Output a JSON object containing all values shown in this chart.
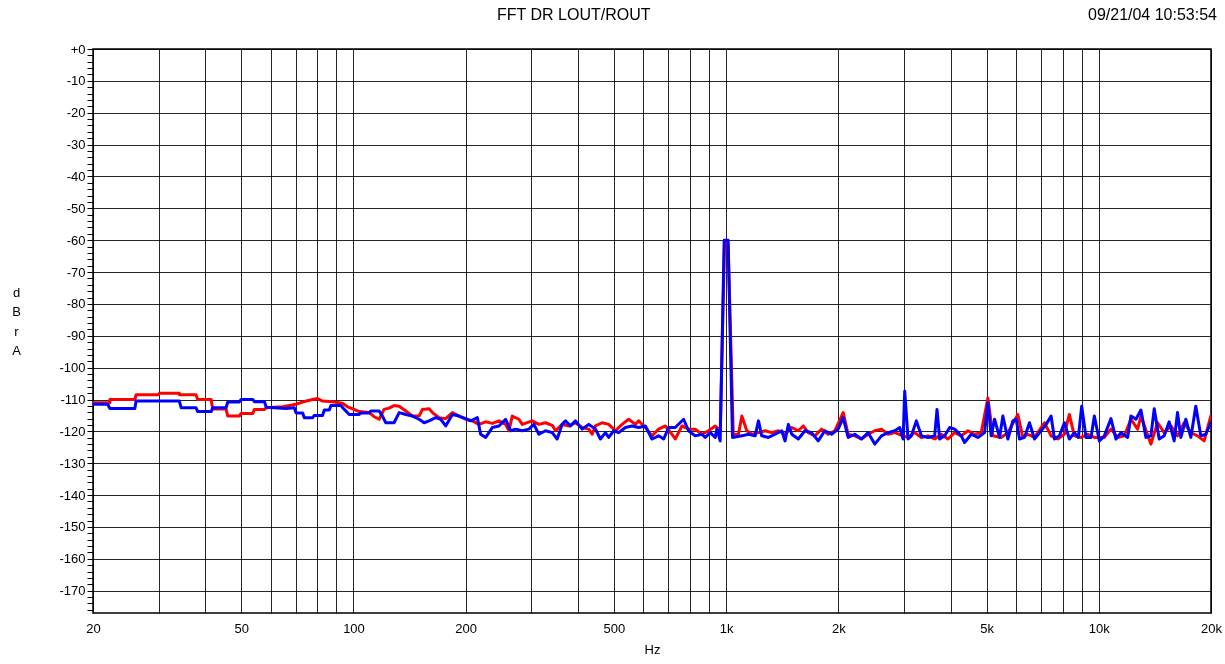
{
  "chart_data": {
    "type": "line",
    "title": "FFT DR LOUT/ROUT",
    "xlabel": "Hz",
    "ylabel": "dBr A",
    "annotations": [
      "09/21/04 10:53:54"
    ],
    "log": "x",
    "grid": true,
    "line_style": "solid",
    "xlim": [
      20,
      20000
    ],
    "xticks": [
      20,
      {
        "value": 30,
        "label": null
      },
      {
        "value": 40,
        "label": null
      },
      50,
      {
        "value": 60,
        "label": null
      },
      {
        "value": 70,
        "label": null
      },
      {
        "value": 80,
        "label": null
      },
      {
        "value": 90,
        "label": null
      },
      100,
      200,
      {
        "value": 300,
        "label": null
      },
      {
        "value": 400,
        "label": null
      },
      500,
      {
        "value": 600,
        "label": null
      },
      {
        "value": 700,
        "label": null
      },
      {
        "value": 800,
        "label": null
      },
      {
        "value": 900,
        "label": null
      },
      {
        "value": 1000,
        "label": "1k"
      },
      {
        "value": 2000,
        "label": "2k"
      },
      {
        "value": 3000,
        "label": null
      },
      {
        "value": 4000,
        "label": null
      },
      {
        "value": 5000,
        "label": "5k"
      },
      {
        "value": 6000,
        "label": null
      },
      {
        "value": 7000,
        "label": null
      },
      {
        "value": 8000,
        "label": null
      },
      {
        "value": 9000,
        "label": null
      },
      {
        "value": 10000,
        "label": "10k"
      },
      {
        "value": 20000,
        "label": "20k"
      }
    ],
    "ylim": [
      -177,
      0
    ],
    "yticks": [
      {
        "value": 0,
        "label": "+0"
      },
      {
        "value": -2,
        "label": null
      },
      {
        "value": -4,
        "label": null
      },
      {
        "value": -6,
        "label": null
      },
      {
        "value": -8,
        "label": null
      },
      -10,
      {
        "value": -12,
        "label": null
      },
      {
        "value": -14,
        "label": null
      },
      {
        "value": -16,
        "label": null
      },
      {
        "value": -18,
        "label": null
      },
      -20,
      {
        "value": -22,
        "label": null
      },
      {
        "value": -24,
        "label": null
      },
      {
        "value": -26,
        "label": null
      },
      {
        "value": -28,
        "label": null
      },
      -30,
      {
        "value": -32,
        "label": null
      },
      {
        "value": -34,
        "label": null
      },
      {
        "value": -36,
        "label": null
      },
      {
        "value": -38,
        "label": null
      },
      -40,
      {
        "value": -42,
        "label": null
      },
      {
        "value": -44,
        "label": null
      },
      {
        "value": -46,
        "label": null
      },
      {
        "value": -48,
        "label": null
      },
      -50,
      {
        "value": -52,
        "label": null
      },
      {
        "value": -54,
        "label": null
      },
      {
        "value": -56,
        "label": null
      },
      {
        "value": -58,
        "label": null
      },
      -60,
      {
        "value": -62,
        "label": null
      },
      {
        "value": -64,
        "label": null
      },
      {
        "value": -66,
        "label": null
      },
      {
        "value": -68,
        "label": null
      },
      -70,
      {
        "value": -72,
        "label": null
      },
      {
        "value": -74,
        "label": null
      },
      {
        "value": -76,
        "label": null
      },
      {
        "value": -78,
        "label": null
      },
      -80,
      {
        "value": -82,
        "label": null
      },
      {
        "value": -84,
        "label": null
      },
      {
        "value": -86,
        "label": null
      },
      {
        "value": -88,
        "label": null
      },
      -90,
      {
        "value": -92,
        "label": null
      },
      {
        "value": -94,
        "label": null
      },
      {
        "value": -96,
        "label": null
      },
      {
        "value": -98,
        "label": null
      },
      -100,
      {
        "value": -102,
        "label": null
      },
      {
        "value": -104,
        "label": null
      },
      {
        "value": -106,
        "label": null
      },
      {
        "value": -108,
        "label": null
      },
      -110,
      {
        "value": -112,
        "label": null
      },
      {
        "value": -114,
        "label": null
      },
      {
        "value": -116,
        "label": null
      },
      {
        "value": -118,
        "label": null
      },
      -120,
      {
        "value": -122,
        "label": null
      },
      {
        "value": -124,
        "label": null
      },
      {
        "value": -126,
        "label": null
      },
      {
        "value": -128,
        "label": null
      },
      -130,
      {
        "value": -132,
        "label": null
      },
      {
        "value": -134,
        "label": null
      },
      {
        "value": -136,
        "label": null
      },
      {
        "value": -138,
        "label": null
      },
      -140,
      {
        "value": -142,
        "label": null
      },
      {
        "value": -144,
        "label": null
      },
      {
        "value": -146,
        "label": null
      },
      {
        "value": -148,
        "label": null
      },
      -150,
      {
        "value": -152,
        "label": null
      },
      {
        "value": -154,
        "label": null
      },
      {
        "value": -156,
        "label": null
      },
      {
        "value": -158,
        "label": null
      },
      -160,
      {
        "value": -162,
        "label": null
      },
      {
        "value": -164,
        "label": null
      },
      {
        "value": -166,
        "label": null
      },
      {
        "value": -168,
        "label": null
      },
      -170,
      {
        "value": -172,
        "label": null
      },
      {
        "value": -174,
        "label": null
      },
      {
        "value": -176,
        "label": null
      }
    ],
    "series": [
      {
        "color": "#ff0000",
        "x": [
          20,
          22.2,
          22.2,
          25.9,
          26.1,
          29.9,
          30.2,
          34.1,
          34.1,
          37.8,
          38.2,
          41.5,
          41.9,
          45.5,
          46,
          49.4,
          49.9,
          53.7,
          54.2,
          57.7,
          58.3,
          64.6,
          70.1,
          73,
          77.7,
          80.1,
          82.6,
          87.8,
          93.4,
          96.4,
          100.4,
          103.6,
          110.2,
          113.6,
          117.2,
          120.8,
          124.6,
          128.5,
          132.6,
          138.2,
          144,
          150,
          153.1,
          159.5,
          162.9,
          169.7,
          176.8,
          184.2,
          192,
          200,
          208.4,
          217.1,
          226.3,
          235.8,
          245.7,
          256,
          261.3,
          266.7,
          277.9,
          283.7,
          301.8,
          314.4,
          327.6,
          341.4,
          348.5,
          363,
          378.3,
          394.1,
          410.7,
          427.9,
          436.9,
          445.9,
          464.6,
          484.1,
          504.4,
          525.6,
          547.7,
          570.6,
          582.5,
          607,
          632.4,
          659,
          686.8,
          715.4,
          730.2,
          761,
          792.8,
          826.2,
          860.7,
          896.9,
          934.7,
          954,
          964,
          990,
          1012,
          1045,
          1079,
          1102,
          1136,
          1172,
          1221,
          1272,
          1325,
          1381,
          1439,
          1500,
          1562,
          1610,
          1661,
          1730,
          1803,
          1879,
          1958,
          2061,
          2125,
          2214,
          2307,
          2404,
          2505,
          2611,
          2720,
          2834,
          2984,
          3077,
          3206,
          3341,
          3481,
          3627,
          3779,
          3938,
          4102,
          4275,
          4455,
          4641,
          4836,
          5039,
          5197,
          5471,
          5701,
          6064,
          6252,
          6448,
          6720,
          7148,
          7447,
          7760,
          8084,
          8337,
          8599,
          8961,
          9335,
          9728,
          10348,
          10781,
          11235,
          11705,
          12198,
          12709,
          12972,
          13795,
          14376,
          14977,
          15607,
          16260,
          16945,
          17658,
          18398,
          19172,
          19975
        ],
        "values": [
          -111,
          -111,
          -110,
          -110,
          -108.5,
          -108.5,
          -108,
          -108,
          -108.5,
          -108.5,
          -110,
          -110,
          -113,
          -113,
          -115.2,
          -115.2,
          -114.4,
          -114.4,
          -113.1,
          -113.1,
          -112.6,
          -112.3,
          -111.5,
          -110.8,
          -110,
          -109.7,
          -110.5,
          -110.7,
          -111.2,
          -112.3,
          -113.1,
          -113.8,
          -114.1,
          -115.4,
          -116.2,
          -113.1,
          -112.7,
          -111.9,
          -112.1,
          -113.6,
          -115.2,
          -115.2,
          -113.1,
          -112.9,
          -114.1,
          -115.7,
          -116,
          -114.1,
          -115.2,
          -116.2,
          -116.7,
          -117.8,
          -117,
          -117.5,
          -116.7,
          -117.8,
          -119.8,
          -115.2,
          -116.2,
          -117.8,
          -116.7,
          -117.8,
          -117.3,
          -118.1,
          -119.8,
          -117.8,
          -118.3,
          -117.3,
          -118.8,
          -119.3,
          -120.9,
          -118.3,
          -117.3,
          -117.8,
          -119.8,
          -117.8,
          -116.2,
          -117.8,
          -116.7,
          -118.8,
          -121.4,
          -119.3,
          -118.3,
          -120.9,
          -122.4,
          -118.3,
          -119.3,
          -119.3,
          -120.9,
          -119.8,
          -118.3,
          -119.3,
          -120,
          -61,
          -61,
          -121,
          -120.9,
          -115.2,
          -119.8,
          -120.9,
          -120.4,
          -119.8,
          -120.4,
          -119.8,
          -120.9,
          -118.8,
          -119.8,
          -118.3,
          -120.4,
          -121.4,
          -119.3,
          -120.9,
          -119.8,
          -114.1,
          -120.9,
          -121.4,
          -122.4,
          -120.9,
          -119.8,
          -119.3,
          -120.9,
          -120.4,
          -121.4,
          -121.9,
          -120.4,
          -121.9,
          -121.4,
          -122.4,
          -120.9,
          -122.4,
          -120.4,
          -121.4,
          -119.8,
          -120.9,
          -120.4,
          -109.5,
          -121.4,
          -121.9,
          -120.4,
          -114.7,
          -121.9,
          -120.9,
          -121.9,
          -117.3,
          -121.4,
          -122.4,
          -120.9,
          -114.7,
          -121.4,
          -121.9,
          -120.9,
          -121.9,
          -121.9,
          -119.3,
          -121.9,
          -121.4,
          -116.2,
          -119.3,
          -115.2,
          -124,
          -117.3,
          -120.4,
          -118.3,
          -121.4,
          -117.3,
          -120.4,
          -121.4,
          -123,
          -115.2
        ]
      },
      {
        "color": "#0000ff",
        "x": [
          20,
          21.9,
          22.2,
          25.9,
          26.1,
          34.1,
          34.5,
          37.8,
          38.2,
          41.5,
          41.9,
          45.5,
          46,
          49.4,
          49.9,
          53.7,
          54.2,
          57.7,
          58.3,
          65.9,
          69.4,
          70.1,
          73,
          73.8,
          77.7,
          78.5,
          82.6,
          83.5,
          86.1,
          87,
          92.5,
          94.5,
          97.4,
          103.6,
          104.7,
          110.2,
          111.3,
          117.2,
          119.6,
          122.1,
          128.5,
          132.6,
          138.2,
          144,
          150,
          154.7,
          159.5,
          166.2,
          171.4,
          176.8,
          184.2,
          192,
          200,
          206.3,
          215,
          219.4,
          226.3,
          235.8,
          245.7,
          256,
          264,
          272.2,
          283.7,
          295.6,
          304.9,
          314.4,
          327.6,
          341.4,
          352,
          363,
          370.6,
          382.2,
          394.1,
          410.7,
          427.9,
          445.9,
          459.9,
          474.3,
          484.1,
          499.3,
          515,
          536.5,
          559.1,
          582.5,
          607,
          632.4,
          659,
          679.7,
          701,
          730.2,
          768.7,
          792.8,
          826.2,
          860.7,
          878.7,
          906.3,
          934.7,
          944.2,
          963.8,
          988,
          1012,
          1040,
          1102,
          1148,
          1196,
          1221,
          1246,
          1299,
          1353,
          1410,
          1439,
          1469,
          1500,
          1562,
          1627,
          1695,
          1766,
          1840,
          1918,
          1998,
          2061,
          2125,
          2214,
          2307,
          2404,
          2505,
          2611,
          2720,
          2834,
          2923,
          2984,
          3014,
          3077,
          3141,
          3239,
          3341,
          3481,
          3627,
          3680,
          3741,
          3858,
          3979,
          4102,
          4275,
          4363,
          4547,
          4737,
          4937,
          5039,
          5143,
          5251,
          5416,
          5528,
          5701,
          5880,
          6002,
          6125,
          6317,
          6515,
          6720,
          7001,
          7221,
          7447,
          7603,
          7840,
          8084,
          8337,
          8599,
          8813,
          8996,
          9241,
          9529,
          9728,
          10033,
          10348,
          10781,
          11119,
          11468,
          11948,
          12198,
          12580,
          12972,
          13378,
          13795,
          14084,
          14522,
          14977,
          15447,
          15931,
          16260,
          16601,
          17121,
          17658,
          18208,
          18779,
          19367,
          19975
        ],
        "values": [
          -111.5,
          -111.5,
          -112.8,
          -112.8,
          -110.5,
          -110.5,
          -112.6,
          -112.6,
          -113.8,
          -113.8,
          -112.6,
          -112.6,
          -110.8,
          -110.8,
          -110,
          -110,
          -110.7,
          -110.7,
          -112.4,
          -112.8,
          -112.6,
          -114.2,
          -114.2,
          -115.7,
          -115.7,
          -115,
          -115,
          -113.3,
          -113.3,
          -111.9,
          -111.9,
          -113.1,
          -114.7,
          -114.7,
          -114.2,
          -114.2,
          -113.6,
          -113.6,
          -115.2,
          -117.3,
          -117.3,
          -114.1,
          -114.7,
          -115.2,
          -116.2,
          -117.3,
          -116.7,
          -115.7,
          -116.2,
          -118.3,
          -114.7,
          -115.2,
          -116,
          -116.7,
          -115.7,
          -120.9,
          -121.9,
          -118.8,
          -118.3,
          -116.2,
          -119.8,
          -119.3,
          -119.8,
          -119.3,
          -117.8,
          -120.9,
          -119.8,
          -120.4,
          -122.4,
          -117.8,
          -116.7,
          -118.3,
          -116.7,
          -119.3,
          -117.8,
          -119.3,
          -122.4,
          -120.4,
          -121.9,
          -119.8,
          -120.4,
          -118.8,
          -118.3,
          -118.8,
          -118.3,
          -122.4,
          -121.4,
          -122.4,
          -118.8,
          -118.8,
          -116.2,
          -119.8,
          -121.4,
          -120.9,
          -121.9,
          -120.4,
          -121.9,
          -119.3,
          -123,
          -60,
          -60,
          -121.9,
          -121.4,
          -120.9,
          -121.4,
          -116.7,
          -121.4,
          -121.9,
          -120.9,
          -119.8,
          -123,
          -117.8,
          -120.9,
          -122.4,
          -119.8,
          -120.4,
          -123,
          -119.8,
          -120.9,
          -119.3,
          -115.7,
          -121.9,
          -120.9,
          -122.4,
          -120.4,
          -124,
          -121.4,
          -120.4,
          -119.8,
          -118.8,
          -122.4,
          -107.4,
          -122.4,
          -121.4,
          -116.7,
          -121.4,
          -121.9,
          -121.4,
          -113.1,
          -122.4,
          -121.4,
          -118.8,
          -119.3,
          -121.4,
          -123.5,
          -120.9,
          -121.9,
          -120.4,
          -111,
          -121.4,
          -116.2,
          -121.9,
          -115.2,
          -122.4,
          -116.7,
          -116.2,
          -122.4,
          -121.9,
          -117.3,
          -122.4,
          -119.8,
          -117.8,
          -115.2,
          -122.4,
          -121.4,
          -117.3,
          -122.4,
          -120.4,
          -121.9,
          -112.1,
          -121.9,
          -121.9,
          -115.2,
          -123,
          -121.4,
          -116,
          -122.4,
          -120.4,
          -121.9,
          -115.2,
          -116.2,
          -113.3,
          -121.9,
          -121.4,
          -112.9,
          -122.4,
          -121.4,
          -117,
          -123,
          -114.1,
          -121.9,
          -116.2,
          -121.9,
          -112.1,
          -121.4,
          -120.9,
          -117.3
        ]
      }
    ]
  }
}
